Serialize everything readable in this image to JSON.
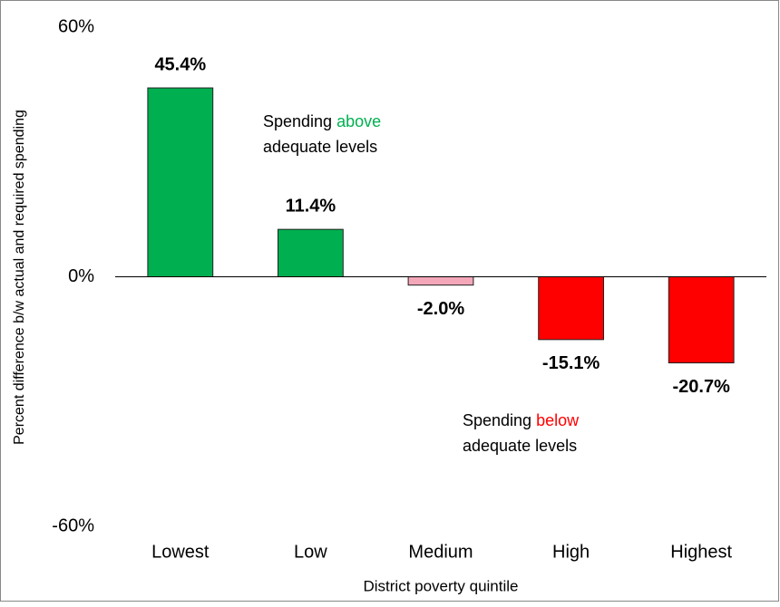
{
  "chart_data": {
    "type": "bar",
    "x_label": "District poverty quintile",
    "y_label": "Percent difference b/w actual and required spending",
    "categories": [
      "Lowest",
      "Low",
      "Medium",
      "High",
      "Highest"
    ],
    "values": [
      45.4,
      11.4,
      -2.0,
      -15.1,
      -20.7
    ],
    "value_labels": [
      "45.4%",
      "11.4%",
      "-2.0%",
      "-15.1%",
      "-20.7%"
    ],
    "colors": [
      "#00b050",
      "#00b050",
      "#f4a7b9",
      "#ff0000",
      "#ff0000"
    ],
    "ylim": [
      -60,
      60
    ],
    "yticks": [
      {
        "value": -60,
        "label": "-60%"
      },
      {
        "value": 0,
        "label": "0%"
      },
      {
        "value": 60,
        "label": "60%"
      }
    ],
    "grid": false,
    "annotations": [
      {
        "text_before": "Spending",
        "highlight": "above",
        "text_after": "adequate levels",
        "highlight_color": "#00b050"
      },
      {
        "text_before": "Spending",
        "highlight": "below",
        "text_after": "adequate levels",
        "highlight_color": "#ff0000"
      }
    ]
  }
}
